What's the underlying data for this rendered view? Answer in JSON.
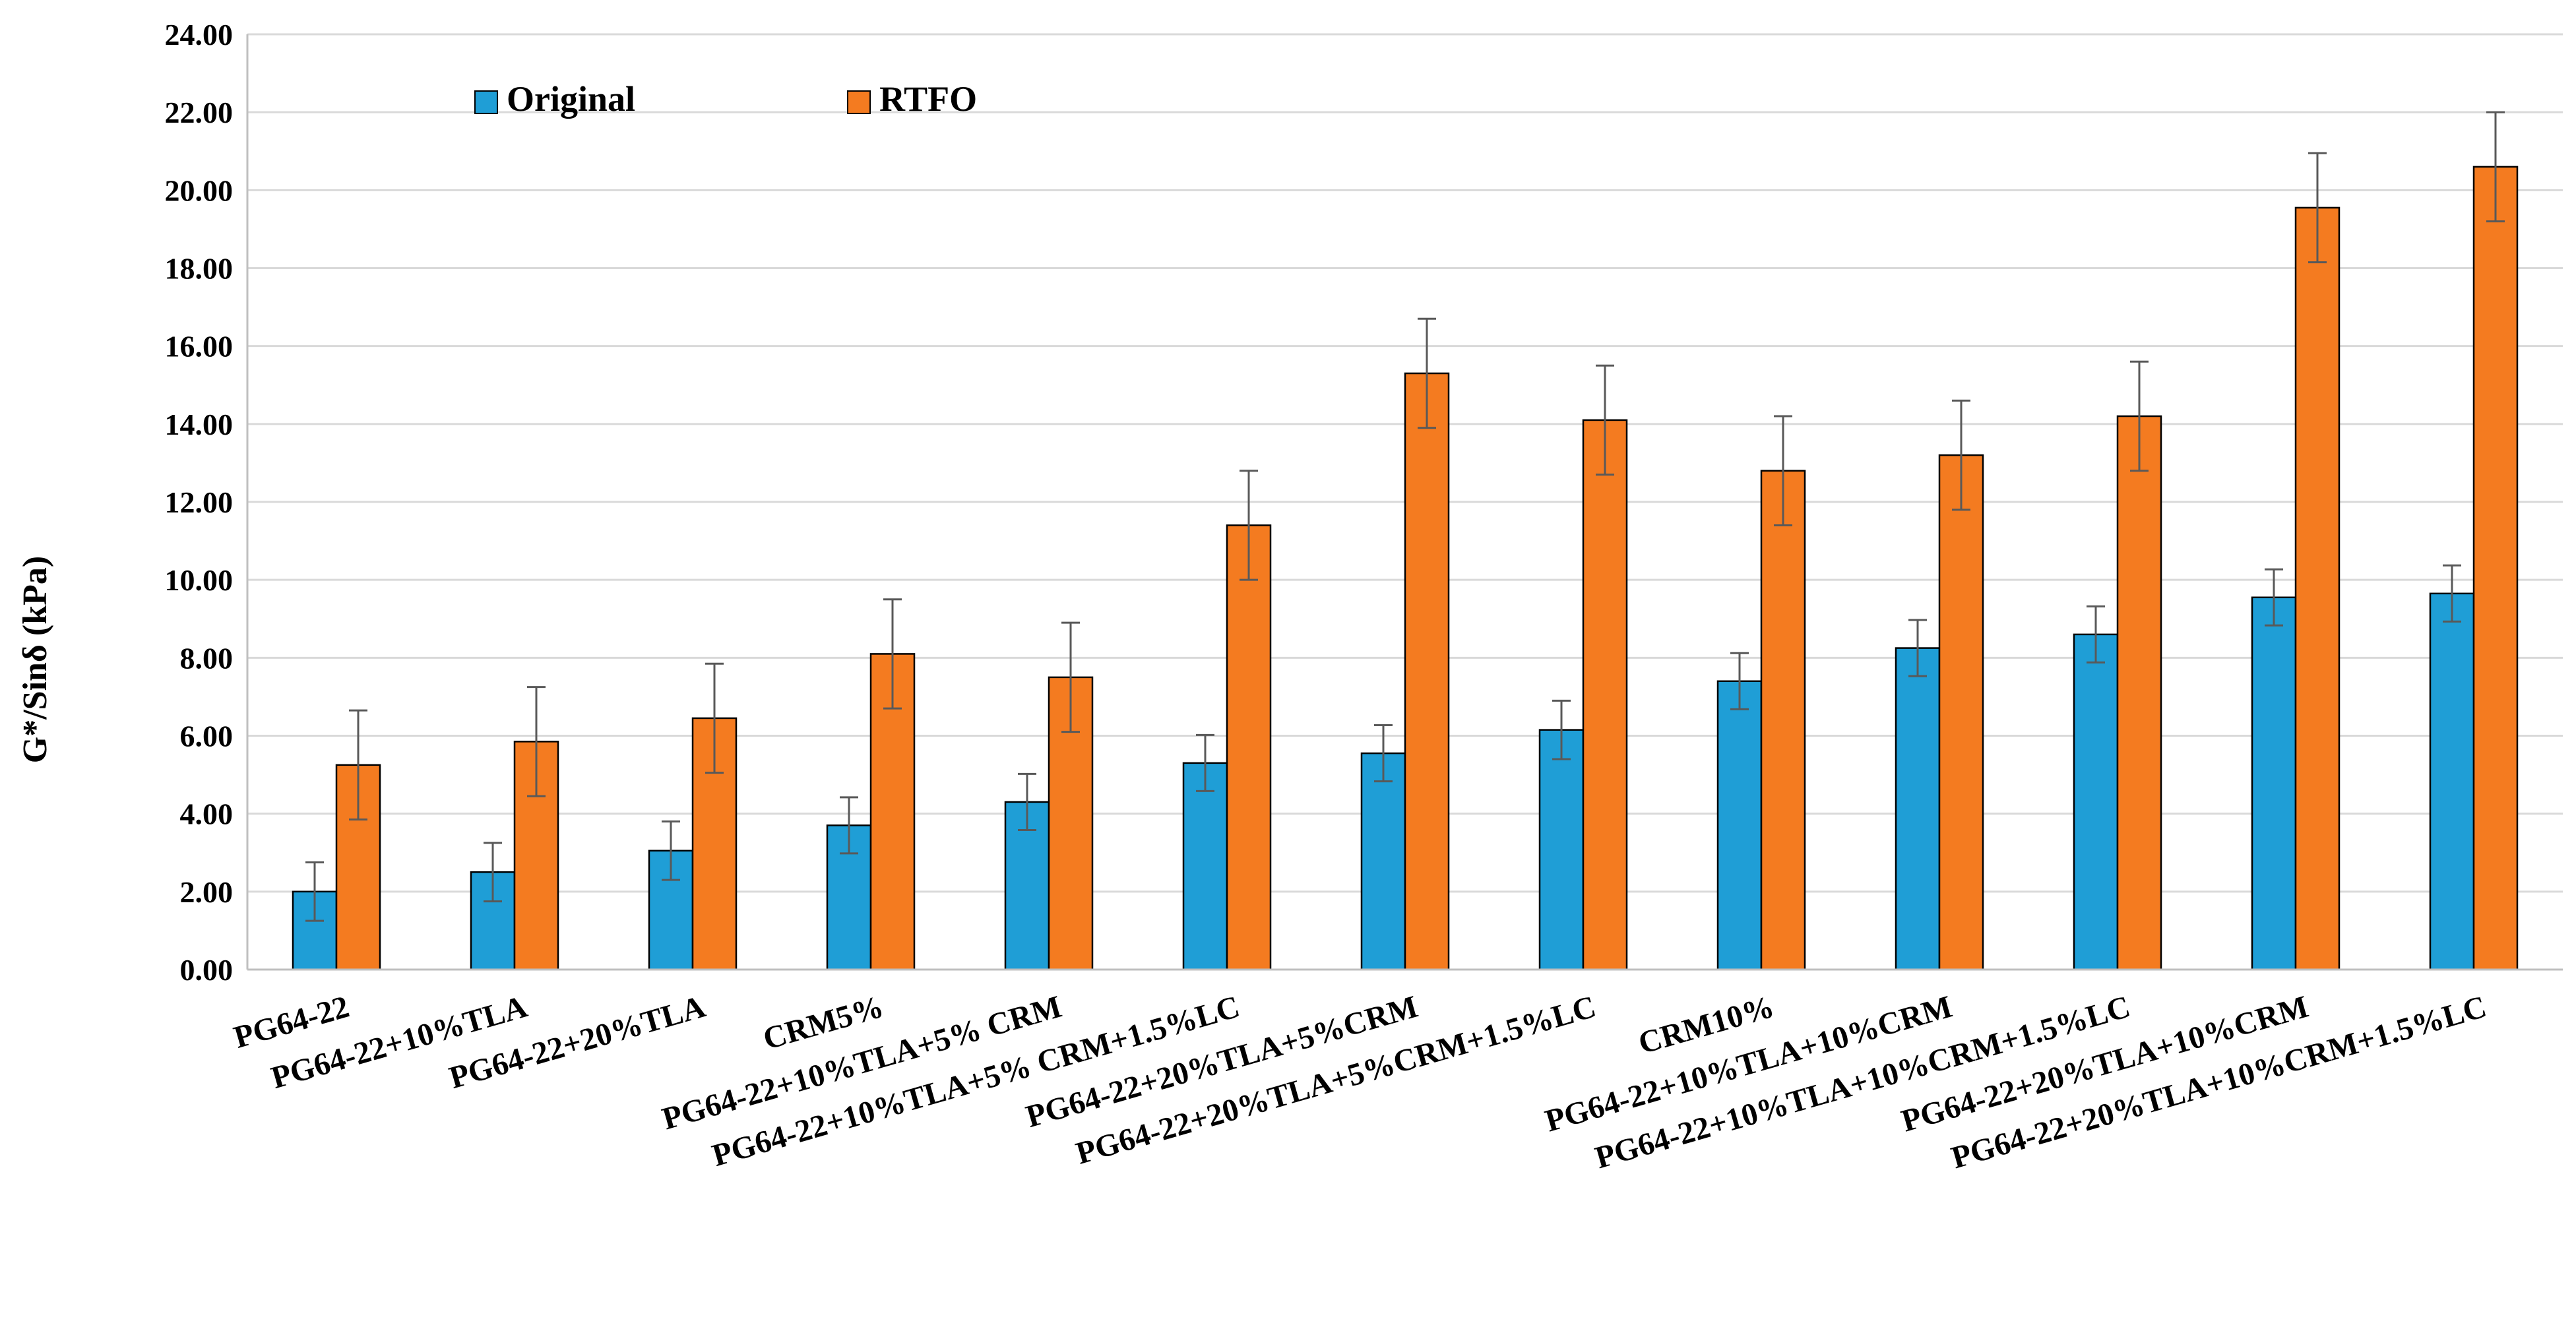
{
  "chart_data": {
    "type": "bar",
    "title": "",
    "xlabel": "",
    "ylabel": "G*/Sinδ (kPa)",
    "ylim": [
      0,
      24
    ],
    "yticks": [
      "0.00",
      "2.00",
      "4.00",
      "6.00",
      "8.00",
      "10.00",
      "12.00",
      "14.00",
      "16.00",
      "18.00",
      "20.00",
      "22.00",
      "24.00"
    ],
    "grid": true,
    "legend": "top-left",
    "categories": [
      "PG64-22",
      "PG64-22+10%TLA",
      "PG64-22+20%TLA",
      "CRM5%",
      "PG64-22+10%TLA+5% CRM",
      "PG64-22+10%TLA+5% CRM+1.5%LC",
      "PG64-22+20%TLA+5%CRM",
      "PG64-22+20%TLA+5%CRM+1.5%LC",
      "CRM10%",
      "PG64-22+10%TLA+10%CRM",
      "PG64-22+10%TLA+10%CRM+1.5%LC",
      "PG64-22+20%TLA+10%CRM",
      "PG64-22+20%TLA+10%CRM+1.5%LC"
    ],
    "series": [
      {
        "name": "Original",
        "color": "#1f9ed6",
        "values": [
          2.0,
          2.5,
          3.05,
          3.7,
          4.3,
          5.3,
          5.55,
          6.15,
          7.4,
          8.25,
          8.6,
          9.55,
          9.65
        ],
        "errors": [
          0.75,
          0.75,
          0.75,
          0.72,
          0.72,
          0.72,
          0.72,
          0.75,
          0.72,
          0.72,
          0.72,
          0.72,
          0.72
        ]
      },
      {
        "name": "RTFO",
        "color": "#f47b20",
        "values": [
          5.25,
          5.85,
          6.45,
          8.1,
          7.5,
          11.4,
          15.3,
          14.1,
          12.8,
          13.2,
          14.2,
          19.55,
          20.6
        ],
        "errors": [
          1.4,
          1.4,
          1.4,
          1.4,
          1.4,
          1.4,
          1.4,
          1.4,
          1.4,
          1.4,
          1.4,
          1.4,
          1.4
        ]
      }
    ]
  }
}
